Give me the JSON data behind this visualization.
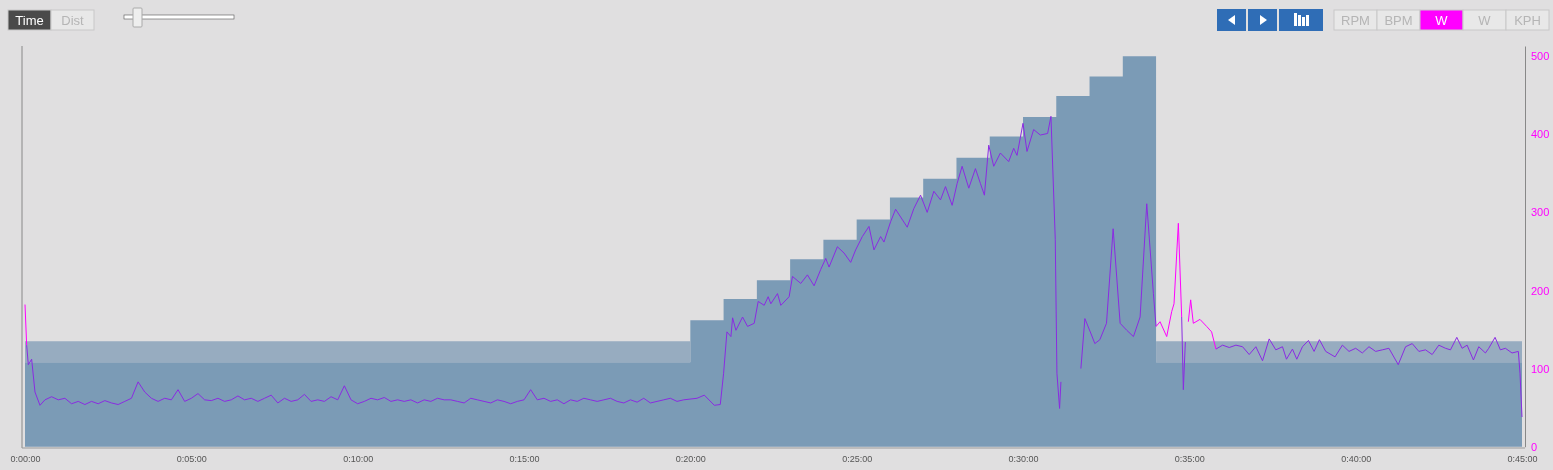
{
  "chart_data": {
    "type": "line",
    "annotations": [
      "Time",
      "Dist",
      "RPM",
      "BPM",
      "W",
      "W",
      "KPH"
    ],
    "xlim": [
      0,
      45
    ],
    "xticks": [
      {
        "value": 0,
        "label": "0:00:00"
      },
      {
        "value": 5,
        "label": "0:05:00"
      },
      {
        "value": 10,
        "label": "0:10:00"
      },
      {
        "value": 15,
        "label": "0:15:00"
      },
      {
        "value": 20,
        "label": "0:20:00"
      },
      {
        "value": 25,
        "label": "0:25:00"
      },
      {
        "value": 30,
        "label": "0:30:00"
      },
      {
        "value": 35,
        "label": "0:35:00"
      },
      {
        "value": 40,
        "label": "0:40:00"
      },
      {
        "value": 45,
        "label": "0:45:00"
      }
    ],
    "stacked": true,
    "ylim": [
      0,
      513
    ],
    "yticks": [
      0,
      100,
      200,
      300,
      400,
      500
    ],
    "series": [
      {
        "type": "area",
        "color": "#7b9bb6",
        "x": [
          0,
          20,
          20,
          21,
          21,
          22,
          22,
          23,
          23,
          24,
          24,
          25,
          25,
          26,
          26,
          27,
          27,
          28,
          28,
          29,
          29,
          30,
          30,
          31,
          31,
          32,
          32,
          33,
          33,
          34,
          34,
          45
        ],
        "values": [
          108,
          108,
          162,
          162,
          189,
          189,
          213,
          213,
          240,
          240,
          265,
          265,
          291,
          291,
          319,
          319,
          343,
          343,
          370,
          370,
          397,
          397,
          422,
          422,
          449,
          449,
          474,
          474,
          500,
          500,
          108,
          108
        ]
      },
      {
        "type": "area",
        "color": "#97acc0",
        "x": [
          0,
          20,
          20,
          21,
          21,
          22,
          22,
          23,
          23,
          24,
          24,
          25,
          25,
          26,
          26,
          27,
          27,
          28,
          28,
          29,
          29,
          30,
          30,
          31,
          31,
          32,
          32,
          33,
          33,
          34,
          34,
          45
        ],
        "values": [
          27,
          27,
          0,
          0,
          0,
          0,
          0,
          0,
          0,
          0,
          0,
          0,
          0,
          0,
          0,
          0,
          0,
          0,
          0,
          0,
          0,
          0,
          0,
          0,
          0,
          0,
          0,
          0,
          0,
          0,
          27,
          27
        ]
      },
      {
        "color": "#8a2be2",
        "x": [
          0.05,
          0.1,
          0.2,
          0.3,
          0.45,
          0.6,
          0.8,
          1.0,
          1.2,
          1.4,
          1.6,
          1.8,
          2.0,
          2.2,
          2.4,
          2.6,
          2.8,
          3.0,
          3.2,
          3.4,
          3.6,
          3.8,
          4.0,
          4.2,
          4.4,
          4.6,
          4.8,
          5.0,
          5.2,
          5.4,
          5.6,
          5.8,
          6.0,
          6.2,
          6.4,
          6.6,
          6.8,
          7.0,
          7.2,
          7.4,
          7.6,
          7.8,
          8.0,
          8.2,
          8.4,
          8.6,
          8.8,
          9.0,
          9.2,
          9.4,
          9.6,
          9.8,
          10.0,
          10.2,
          10.4,
          10.6,
          10.8,
          11.0,
          11.2,
          11.4,
          11.6,
          11.8,
          12.0,
          12.2,
          12.4,
          12.6,
          12.8,
          13.0,
          13.2,
          13.4,
          13.6,
          13.8,
          14.0,
          14.2,
          14.4,
          14.6,
          14.8,
          15.0,
          15.2,
          15.4,
          15.6,
          15.8,
          16.0,
          16.2,
          16.4,
          16.6,
          16.8,
          17.0,
          17.2,
          17.4,
          17.6,
          17.8,
          18.0,
          18.2,
          18.4,
          18.6,
          18.8,
          19.0,
          19.2,
          19.4,
          19.6,
          19.8,
          20.2,
          20.42,
          20.72,
          20.9,
          21.0,
          21.1,
          21.22,
          21.27,
          21.37,
          21.57,
          21.72,
          21.92,
          22.04,
          22.22,
          22.34,
          22.42,
          22.62,
          22.72,
          22.97,
          23.07,
          23.32,
          23.52,
          23.72,
          23.92,
          24.07,
          24.17,
          24.42,
          24.62,
          24.82,
          24.97,
          25.17,
          25.37,
          25.52,
          25.72,
          25.82,
          26.02,
          26.17,
          26.52,
          26.72,
          26.92,
          27.12,
          27.32,
          27.52,
          27.67,
          27.87,
          28.02,
          28.17,
          28.37,
          28.57,
          28.72,
          28.84,
          28.97,
          29.12,
          29.32,
          29.57,
          29.72,
          29.82,
          30.0,
          30.12,
          30.32,
          30.52,
          30.74,
          30.84,
          30.97,
          31.02,
          31.1,
          31.14,
          31.4,
          31.74,
          31.86,
          32.06,
          32.16,
          32.31,
          32.51,
          32.71,
          32.92,
          33.12,
          33.32,
          33.52,
          33.72,
          33.92,
          34.0,
          34.4,
          34.77,
          34.82,
          34.88,
          34.9,
          35.8,
          36.0,
          36.2,
          36.4,
          36.6,
          36.8,
          37.0,
          37.2,
          37.4,
          37.6,
          37.8,
          37.92,
          38.1,
          38.23,
          38.4,
          38.58,
          38.75,
          38.91,
          39.1,
          39.38,
          39.6,
          39.8,
          40.0,
          40.2,
          40.4,
          40.6,
          40.8,
          41.0,
          41.28,
          41.5,
          41.7,
          41.9,
          42.1,
          42.3,
          42.5,
          42.7,
          42.85,
          43.04,
          43.2,
          43.35,
          43.54,
          43.7,
          43.9,
          44.0,
          44.19,
          44.35,
          44.5,
          44.7,
          44.89,
          44.94,
          45.0
        ],
        "values": [
          130,
          105,
          112,
          70,
          53,
          60,
          64,
          60,
          62,
          55,
          58,
          54,
          58,
          55,
          59,
          56,
          54,
          58,
          62,
          83,
          70,
          62,
          58,
          62,
          60,
          73,
          58,
          62,
          68,
          60,
          59,
          62,
          58,
          60,
          65,
          60,
          62,
          58,
          62,
          66,
          56,
          62,
          58,
          60,
          67,
          58,
          60,
          58,
          64,
          60,
          78,
          60,
          55,
          58,
          62,
          60,
          63,
          58,
          60,
          58,
          60,
          56,
          60,
          58,
          62,
          60,
          60,
          58,
          56,
          62,
          60,
          58,
          56,
          60,
          58,
          55,
          58,
          60,
          73,
          60,
          62,
          58,
          60,
          55,
          60,
          58,
          62,
          60,
          58,
          60,
          62,
          58,
          56,
          60,
          57,
          62,
          56,
          58,
          60,
          62,
          58,
          60,
          62,
          66,
          53,
          54,
          94,
          147,
          141,
          165,
          149,
          166,
          154,
          158,
          186,
          181,
          192,
          183,
          196,
          181,
          192,
          218,
          209,
          220,
          206,
          227,
          241,
          230,
          256,
          248,
          236,
          252,
          269,
          282,
          252,
          269,
          262,
          288,
          304,
          281,
          305,
          322,
          300,
          327,
          316,
          333,
          309,
          337,
          359,
          331,
          356,
          337,
          322,
          386,
          359,
          376,
          365,
          382,
          373,
          414,
          378,
          406,
          399,
          401,
          423,
          265,
          94,
          49,
          83,
          null,
          100,
          164,
          143,
          132,
          137,
          158,
          279,
          158,
          149,
          141,
          166,
          311,
          196,
          154,
          null,
          166,
          73,
          134,
          null,
          125,
          130,
          127,
          130,
          128,
          118,
          128,
          110,
          138,
          124,
          128,
          112,
          125,
          112,
          128,
          136,
          122,
          137,
          122,
          115,
          130,
          122,
          126,
          120,
          128,
          122,
          124,
          126,
          105,
          128,
          132,
          122,
          124,
          118,
          130,
          126,
          124,
          140,
          126,
          130,
          111,
          128,
          120,
          126,
          140,
          124,
          126,
          120,
          122,
          94,
          38
        ]
      },
      {
        "color": "#ff00ff",
        "x": [
          0,
          0.05,
          1.0,
          34.0,
          34.12,
          34.32,
          34.47,
          34.54,
          34.67,
          34.77,
          34.87,
          34.97,
          35.04,
          35.12,
          35.32,
          35.52,
          35.67,
          35.8
        ],
        "values": [
          182,
          130,
          null,
          154,
          160,
          141,
          173,
          183,
          286,
          166,
          null,
          160,
          188,
          158,
          163,
          154,
          147,
          125
        ]
      }
    ]
  }
}
